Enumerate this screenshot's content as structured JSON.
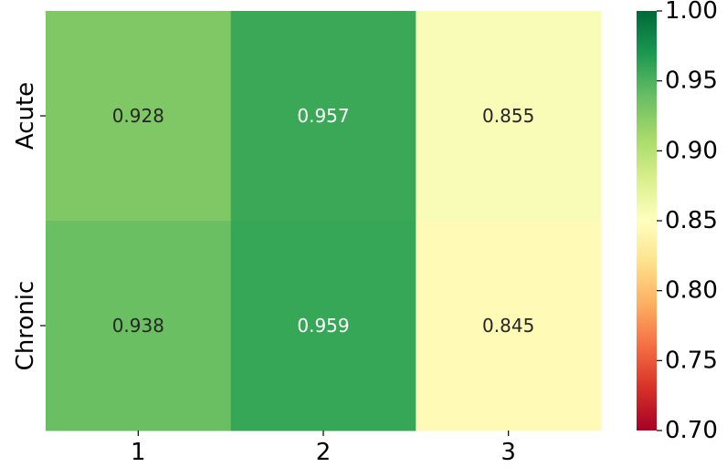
{
  "chart_data": {
    "type": "heatmap",
    "rows": [
      "Acute",
      "Chronic"
    ],
    "columns": [
      "1",
      "2",
      "3"
    ],
    "values": [
      [
        0.928,
        0.957,
        0.855
      ],
      [
        0.938,
        0.959,
        0.845
      ]
    ],
    "value_labels": [
      [
        "0.928",
        "0.957",
        "0.855"
      ],
      [
        "0.938",
        "0.959",
        "0.845"
      ]
    ],
    "colorbar": {
      "range": [
        0.7,
        1.0
      ],
      "ticks": [
        0.7,
        0.75,
        0.8,
        0.85,
        0.9,
        0.95,
        1.0
      ],
      "tick_labels": [
        "0.70",
        "0.75",
        "0.80",
        "0.85",
        "0.90",
        "0.95",
        "1.00"
      ],
      "colormap": "RdYlGn"
    },
    "title": "",
    "xlabel": "",
    "ylabel": "",
    "grid": false
  }
}
